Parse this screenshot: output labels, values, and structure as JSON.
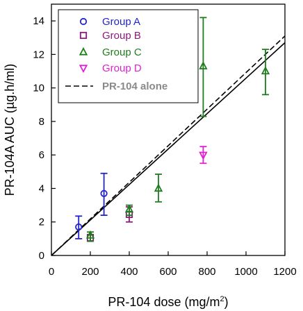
{
  "chart_data": {
    "type": "scatter",
    "xlabel": "PR-104 dose (mg/m",
    "xlabel_sup": "2",
    "xlabel_end": ")",
    "ylabel": "PR-104A AUC (µg.h/ml)",
    "xlim": [
      0,
      1200
    ],
    "ylim": [
      0,
      15
    ],
    "x_ticks": [
      0,
      200,
      400,
      600,
      800,
      1000,
      1200
    ],
    "y_ticks": [
      0,
      2,
      4,
      6,
      8,
      10,
      12,
      14
    ],
    "grid": false,
    "legend_position": "top-left",
    "series": [
      {
        "name": "Group A",
        "marker": "circle",
        "color": "#2323cc",
        "points": [
          {
            "x": 140,
            "y": 1.7,
            "err_low": 1.0,
            "err_high": 2.35
          },
          {
            "x": 270,
            "y": 3.7,
            "err_low": 2.4,
            "err_high": 4.9
          }
        ]
      },
      {
        "name": "Group B",
        "marker": "square",
        "color": "#8c1a7a",
        "points": [
          {
            "x": 200,
            "y": 1.05,
            "err_low": 0.85,
            "err_high": 1.25
          },
          {
            "x": 400,
            "y": 2.45,
            "err_low": 2.0,
            "err_high": 2.9
          }
        ]
      },
      {
        "name": "Group C",
        "marker": "triangle-up",
        "color": "#1e7d1e",
        "points": [
          {
            "x": 200,
            "y": 1.2,
            "err_low": 0.85,
            "err_high": 1.4
          },
          {
            "x": 400,
            "y": 2.75,
            "err_low": 2.4,
            "err_high": 3.0
          },
          {
            "x": 550,
            "y": 4.0,
            "err_low": 3.2,
            "err_high": 4.85
          },
          {
            "x": 780,
            "y": 11.3,
            "err_low": 8.3,
            "err_high": 14.2
          },
          {
            "x": 1100,
            "y": 11.0,
            "err_low": 9.6,
            "err_high": 12.3
          }
        ]
      },
      {
        "name": "Group D",
        "marker": "triangle-down",
        "color": "#e020d0",
        "points": [
          {
            "x": 780,
            "y": 6.0,
            "err_low": 5.5,
            "err_high": 6.5
          }
        ]
      }
    ],
    "lines": [
      {
        "name": "PR-104 alone",
        "style": "dashed",
        "color": "#000000",
        "x": [
          0,
          1200
        ],
        "y": [
          0,
          13.1
        ]
      },
      {
        "name": "",
        "style": "solid",
        "color": "#000000",
        "x": [
          0,
          1200
        ],
        "y": [
          0,
          12.7
        ]
      }
    ]
  }
}
